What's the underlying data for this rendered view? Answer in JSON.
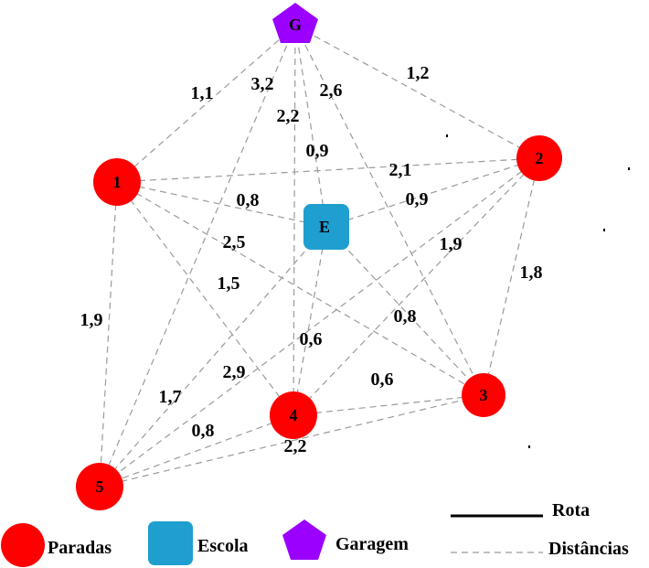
{
  "nodes": {
    "G": {
      "label": "G",
      "kind": "garagem"
    },
    "E": {
      "label": "E",
      "kind": "escola"
    },
    "1": {
      "label": "1",
      "kind": "parada"
    },
    "2": {
      "label": "2",
      "kind": "parada"
    },
    "3": {
      "label": "3",
      "kind": "parada"
    },
    "4": {
      "label": "4",
      "kind": "parada"
    },
    "5": {
      "label": "5",
      "kind": "parada"
    }
  },
  "edges": [
    {
      "from": "G",
      "to": "1",
      "label": "1,1"
    },
    {
      "from": "G",
      "to": "5",
      "label": "3,2"
    },
    {
      "from": "G",
      "to": "4",
      "label": "2,2"
    },
    {
      "from": "G",
      "to": "E",
      "label": "0,9"
    },
    {
      "from": "G",
      "to": "3",
      "label": "2,6"
    },
    {
      "from": "G",
      "to": "2",
      "label": "1,2"
    },
    {
      "from": "1",
      "to": "2",
      "label": "2,1"
    },
    {
      "from": "1",
      "to": "E",
      "label": "0,8"
    },
    {
      "from": "1",
      "to": "3",
      "label": "2,5"
    },
    {
      "from": "1",
      "to": "4",
      "label": "1,5"
    },
    {
      "from": "1",
      "to": "5",
      "label": "1,9"
    },
    {
      "from": "E",
      "to": "2",
      "label": "0,9"
    },
    {
      "from": "E",
      "to": "3",
      "label": "0,8"
    },
    {
      "from": "E",
      "to": "4",
      "label": "0,6"
    },
    {
      "from": "E",
      "to": "5",
      "label": "1,7"
    },
    {
      "from": "2",
      "to": "4",
      "label": "1,9"
    },
    {
      "from": "2",
      "to": "3",
      "label": "1,8"
    },
    {
      "from": "2",
      "to": "5",
      "label": "2,9"
    },
    {
      "from": "4",
      "to": "3",
      "label": "0,6"
    },
    {
      "from": "4",
      "to": "5",
      "label": "0,8"
    },
    {
      "from": "5",
      "to": "3",
      "label": "2,2"
    }
  ],
  "legend": {
    "paradas": "Paradas",
    "escola": "Escola",
    "garagem": "Garagem",
    "rota": "Rota",
    "distancias": "Distâncias"
  },
  "colors": {
    "parada": "#ff0000",
    "escola": "#1e9fd0",
    "garagem": "#9b00ff",
    "edge": "#9a9a9a"
  }
}
